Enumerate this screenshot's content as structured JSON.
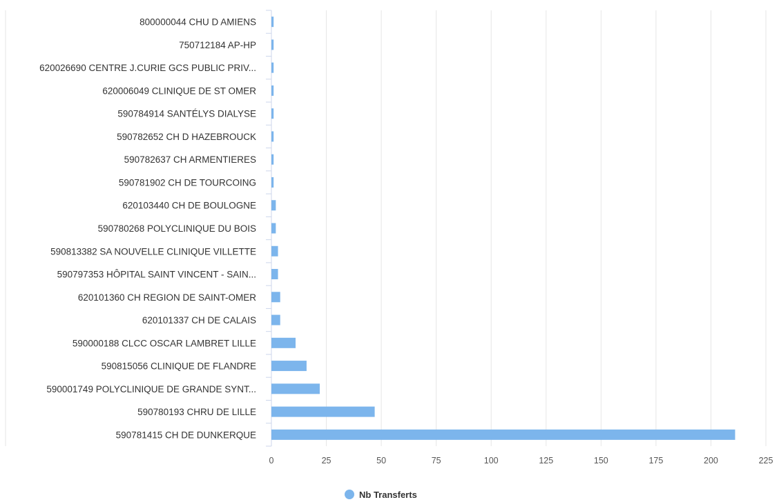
{
  "chart_data": {
    "type": "bar",
    "orientation": "horizontal",
    "categories": [
      "800000044 CHU D AMIENS",
      "750712184 AP-HP",
      "620026690 CENTRE J.CURIE GCS PUBLIC PRIV...",
      "620006049 CLINIQUE DE ST OMER",
      "590784914 SANTÉLYS DIALYSE",
      "590782652 CH D HAZEBROUCK",
      "590782637 CH ARMENTIERES",
      "590781902 CH DE TOURCOING",
      "620103440 CH DE BOULOGNE",
      "590780268 POLYCLINIQUE DU BOIS",
      "590813382 SA NOUVELLE CLINIQUE VILLETTE",
      "590797353 HÔPITAL SAINT VINCENT - SAIN...",
      "620101360 CH REGION DE SAINT-OMER",
      "620101337 CH DE CALAIS",
      "590000188 CLCC OSCAR LAMBRET LILLE",
      "590815056 CLINIQUE DE FLANDRE",
      "590001749 POLYCLINIQUE DE GRANDE SYNT...",
      "590780193 CHRU DE LILLE",
      "590781415 CH DE DUNKERQUE"
    ],
    "series": [
      {
        "name": "Nb Transferts",
        "values": [
          1,
          1,
          1,
          1,
          1,
          1,
          1,
          1,
          2,
          2,
          3,
          3,
          4,
          4,
          11,
          16,
          22,
          47,
          211
        ]
      }
    ],
    "xlim": [
      0,
      225
    ],
    "xticks": [
      "0",
      "25",
      "50",
      "75",
      "100",
      "125",
      "150",
      "175",
      "200",
      "225"
    ],
    "grid": "vertical",
    "legend": "bottom-center",
    "color": "#7cb5ec"
  }
}
